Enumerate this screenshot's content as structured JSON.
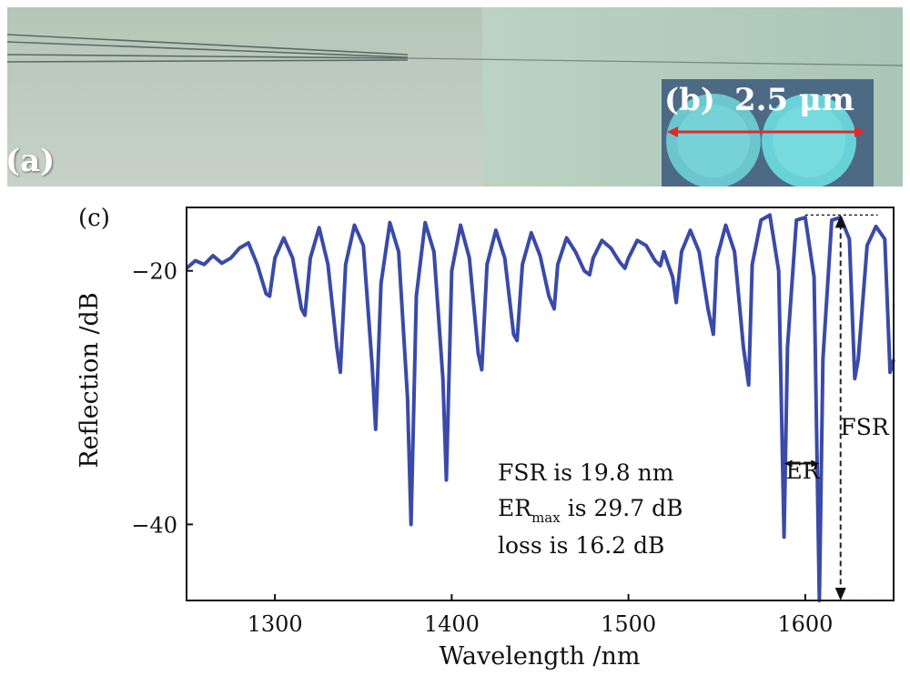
{
  "panel_a": {
    "label": "(a)"
  },
  "panel_b": {
    "label": "(b)",
    "scale_text": "2.5 μm"
  },
  "chart_data": {
    "type": "line",
    "panel_label": "(c)",
    "xlabel": "Wavelength /nm",
    "ylabel": "Reflection /dB",
    "xlim": [
      1250,
      1650
    ],
    "ylim": [
      -46,
      -15
    ],
    "xticks": [
      1300,
      1400,
      1500,
      1600
    ],
    "xtick_labels": [
      "1300",
      "1400",
      "1500",
      "1600"
    ],
    "yticks": [
      -20,
      -40
    ],
    "ytick_labels": [
      "−20",
      "−40"
    ],
    "grid": false,
    "series": [
      {
        "color": "#3a4aa8",
        "x": [
          1250,
          1255,
          1260,
          1265,
          1270,
          1275,
          1280,
          1285,
          1290,
          1295,
          1297,
          1300,
          1305,
          1310,
          1315,
          1317,
          1320,
          1325,
          1330,
          1335,
          1337,
          1340,
          1345,
          1350,
          1355,
          1357,
          1360,
          1365,
          1370,
          1375,
          1377,
          1380,
          1385,
          1390,
          1395,
          1397,
          1400,
          1405,
          1410,
          1415,
          1417,
          1420,
          1425,
          1430,
          1435,
          1437,
          1440,
          1445,
          1450,
          1455,
          1458,
          1460,
          1465,
          1470,
          1475,
          1478,
          1480,
          1485,
          1490,
          1495,
          1498,
          1500,
          1505,
          1510,
          1515,
          1518,
          1520,
          1525,
          1527,
          1530,
          1535,
          1540,
          1545,
          1548,
          1550,
          1555,
          1560,
          1565,
          1568,
          1570,
          1575,
          1580,
          1585,
          1588,
          1590,
          1595,
          1600,
          1605,
          1608,
          1610,
          1615,
          1620,
          1625,
          1628,
          1630,
          1635,
          1640,
          1645,
          1648,
          1650
        ],
        "values": [
          -19.8,
          -19.2,
          -19.5,
          -18.8,
          -19.4,
          -19.0,
          -18.2,
          -17.8,
          -19.5,
          -21.8,
          -22.0,
          -19.0,
          -17.4,
          -19.0,
          -23.0,
          -23.5,
          -19.0,
          -16.6,
          -19.5,
          -26.0,
          -28.0,
          -19.5,
          -16.4,
          -18.0,
          -27.5,
          -32.5,
          -21.0,
          -16.2,
          -18.5,
          -30.0,
          -40.0,
          -22.0,
          -16.2,
          -18.5,
          -28.5,
          -36.5,
          -20.0,
          -16.4,
          -19.0,
          -26.5,
          -27.8,
          -19.5,
          -16.8,
          -19.0,
          -25.0,
          -25.5,
          -19.5,
          -17.0,
          -18.8,
          -22.0,
          -23.0,
          -19.5,
          -17.4,
          -18.5,
          -20.0,
          -20.3,
          -19.0,
          -17.6,
          -18.2,
          -19.3,
          -19.8,
          -19.0,
          -17.6,
          -18.0,
          -19.2,
          -19.6,
          -18.5,
          -20.5,
          -22.5,
          -18.5,
          -16.8,
          -18.5,
          -23.0,
          -25.0,
          -19.0,
          -16.4,
          -18.5,
          -26.0,
          -29.0,
          -19.5,
          -16.0,
          -15.6,
          -20.0,
          -41.0,
          -26.0,
          -16.0,
          -15.8,
          -20.5,
          -46.0,
          -27.0,
          -16.0,
          -15.8,
          -17.5,
          -28.5,
          -27.0,
          -18.0,
          -16.5,
          -17.5,
          -28.0,
          -27.0
        ]
      }
    ],
    "annotations": [
      "FSR is 19.8 nm",
      "ER",
      "max",
      "is 29.7 dB",
      "loss is 16.2 dB",
      "ER",
      "FSR"
    ]
  }
}
